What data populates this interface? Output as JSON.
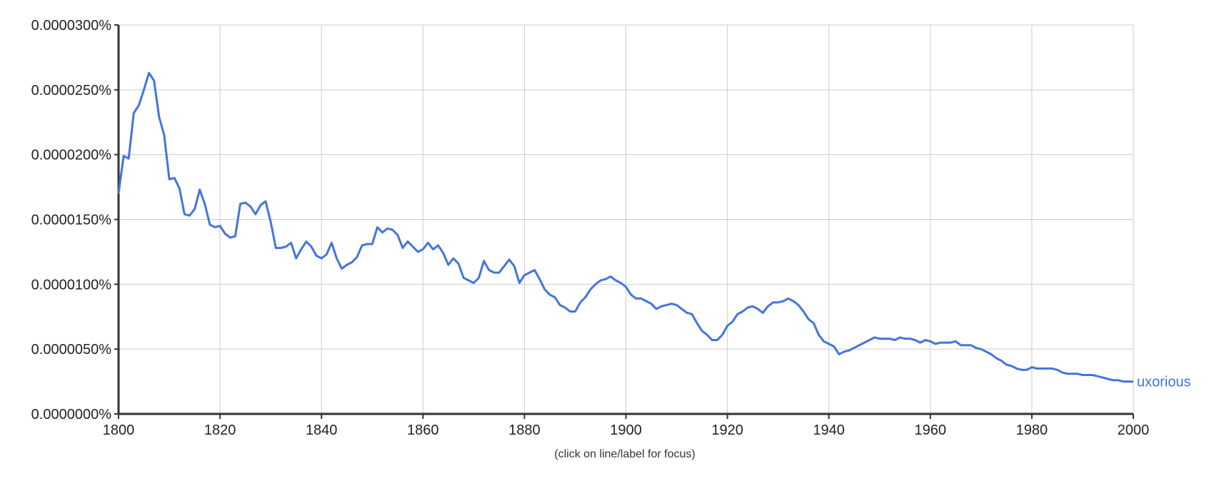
{
  "chart_data": {
    "type": "line",
    "title": "",
    "xlabel": "",
    "ylabel": "",
    "xlim": [
      1800,
      2000
    ],
    "ylim": [
      0,
      3e-05
    ],
    "grid": true,
    "x_ticks": [
      1800,
      1820,
      1840,
      1860,
      1880,
      1900,
      1920,
      1940,
      1960,
      1980,
      2000
    ],
    "x_tick_labels": [
      "1800",
      "1820",
      "1840",
      "1860",
      "1880",
      "1900",
      "1920",
      "1940",
      "1960",
      "1980",
      "2000"
    ],
    "y_ticks": [
      0,
      5e-06,
      1e-05,
      1.5e-05,
      2e-05,
      2.5e-05,
      3e-05
    ],
    "y_tick_labels": [
      "0.0000000%",
      "0.0000050%",
      "0.0000100%",
      "0.0000150%",
      "0.0000200%",
      "0.0000250%",
      "0.0000300%"
    ],
    "series": [
      {
        "name": "uxorious",
        "color": "#4374e0",
        "x": [
          1800,
          1801,
          1802,
          1803,
          1804,
          1805,
          1806,
          1807,
          1808,
          1809,
          1810,
          1811,
          1812,
          1813,
          1814,
          1815,
          1816,
          1817,
          1818,
          1819,
          1820,
          1821,
          1822,
          1823,
          1824,
          1825,
          1826,
          1827,
          1828,
          1829,
          1830,
          1831,
          1832,
          1833,
          1834,
          1835,
          1836,
          1837,
          1838,
          1839,
          1840,
          1841,
          1842,
          1843,
          1844,
          1845,
          1846,
          1847,
          1848,
          1849,
          1850,
          1851,
          1852,
          1853,
          1854,
          1855,
          1856,
          1857,
          1858,
          1859,
          1860,
          1861,
          1862,
          1863,
          1864,
          1865,
          1866,
          1867,
          1868,
          1869,
          1870,
          1871,
          1872,
          1873,
          1874,
          1875,
          1876,
          1877,
          1878,
          1879,
          1880,
          1881,
          1882,
          1883,
          1884,
          1885,
          1886,
          1887,
          1888,
          1889,
          1890,
          1891,
          1892,
          1893,
          1894,
          1895,
          1896,
          1897,
          1898,
          1899,
          1900,
          1901,
          1902,
          1903,
          1904,
          1905,
          1906,
          1907,
          1908,
          1909,
          1910,
          1911,
          1912,
          1913,
          1914,
          1915,
          1916,
          1917,
          1918,
          1919,
          1920,
          1921,
          1922,
          1923,
          1924,
          1925,
          1926,
          1927,
          1928,
          1929,
          1930,
          1931,
          1932,
          1933,
          1934,
          1935,
          1936,
          1937,
          1938,
          1939,
          1940,
          1941,
          1942,
          1943,
          1944,
          1945,
          1946,
          1947,
          1948,
          1949,
          1950,
          1951,
          1952,
          1953,
          1954,
          1955,
          1956,
          1957,
          1958,
          1959,
          1960,
          1961,
          1962,
          1963,
          1964,
          1965,
          1966,
          1967,
          1968,
          1969,
          1970,
          1971,
          1972,
          1973,
          1974,
          1975,
          1976,
          1977,
          1978,
          1979,
          1980,
          1981,
          1982,
          1983,
          1984,
          1985,
          1986,
          1987,
          1988,
          1989,
          1990,
          1991,
          1992,
          1993,
          1994,
          1995,
          1996,
          1997,
          1998,
          1999,
          2000
        ],
        "values": [
          1.7e-05,
          1.99e-05,
          1.97e-05,
          2.32e-05,
          2.38e-05,
          2.5e-05,
          2.63e-05,
          2.57e-05,
          2.29e-05,
          2.15e-05,
          1.81e-05,
          1.82e-05,
          1.74e-05,
          1.54e-05,
          1.53e-05,
          1.58e-05,
          1.73e-05,
          1.62e-05,
          1.46e-05,
          1.44e-05,
          1.45e-05,
          1.39e-05,
          1.36e-05,
          1.37e-05,
          1.62e-05,
          1.63e-05,
          1.6e-05,
          1.54e-05,
          1.61e-05,
          1.64e-05,
          1.48e-05,
          1.28e-05,
          1.28e-05,
          1.29e-05,
          1.32e-05,
          1.2e-05,
          1.27e-05,
          1.33e-05,
          1.29e-05,
          1.22e-05,
          1.2e-05,
          1.23e-05,
          1.32e-05,
          1.2e-05,
          1.12e-05,
          1.15e-05,
          1.17e-05,
          1.21e-05,
          1.3e-05,
          1.31e-05,
          1.31e-05,
          1.44e-05,
          1.4e-05,
          1.43e-05,
          1.42e-05,
          1.38e-05,
          1.28e-05,
          1.33e-05,
          1.29e-05,
          1.25e-05,
          1.27e-05,
          1.32e-05,
          1.27e-05,
          1.3e-05,
          1.24e-05,
          1.15e-05,
          1.2e-05,
          1.16e-05,
          1.05e-05,
          1.03e-05,
          1.01e-05,
          1.05e-05,
          1.18e-05,
          1.11e-05,
          1.09e-05,
          1.09e-05,
          1.14e-05,
          1.19e-05,
          1.14e-05,
          1.01e-05,
          1.07e-05,
          1.09e-05,
          1.11e-05,
          1.04e-05,
          9.6e-06,
          9.2e-06,
          9e-06,
          8.4e-06,
          8.2e-06,
          7.9e-06,
          7.9e-06,
          8.6e-06,
          9e-06,
          9.6e-06,
          1e-05,
          1.03e-05,
          1.04e-05,
          1.06e-05,
          1.03e-05,
          1.01e-05,
          9.8e-06,
          9.2e-06,
          8.9e-06,
          8.9e-06,
          8.7e-06,
          8.5e-06,
          8.1e-06,
          8.3e-06,
          8.4e-06,
          8.5e-06,
          8.4e-06,
          8.1e-06,
          7.8e-06,
          7.7e-06,
          7e-06,
          6.4e-06,
          6.1e-06,
          5.7e-06,
          5.7e-06,
          6.1e-06,
          6.8e-06,
          7.1e-06,
          7.7e-06,
          7.9e-06,
          8.2e-06,
          8.3e-06,
          8.1e-06,
          7.8e-06,
          8.3e-06,
          8.6e-06,
          8.6e-06,
          8.7e-06,
          8.9e-06,
          8.7e-06,
          8.4e-06,
          7.9e-06,
          7.3e-06,
          7e-06,
          6.1e-06,
          5.6e-06,
          5.4e-06,
          5.2e-06,
          4.6e-06,
          4.8e-06,
          4.9e-06,
          5.1e-06,
          5.3e-06,
          5.5e-06,
          5.7e-06,
          5.9e-06,
          5.8e-06,
          5.8e-06,
          5.8e-06,
          5.7e-06,
          5.9e-06,
          5.8e-06,
          5.8e-06,
          5.7e-06,
          5.5e-06,
          5.7e-06,
          5.6e-06,
          5.4e-06,
          5.5e-06,
          5.5e-06,
          5.5e-06,
          5.6e-06,
          5.3e-06,
          5.3e-06,
          5.3e-06,
          5.1e-06,
          5e-06,
          4.8e-06,
          4.6e-06,
          4.3e-06,
          4.1e-06,
          3.8e-06,
          3.7e-06,
          3.5e-06,
          3.4e-06,
          3.4e-06,
          3.6e-06,
          3.5e-06,
          3.5e-06,
          3.5e-06,
          3.5e-06,
          3.4e-06,
          3.2e-06,
          3.1e-06,
          3.1e-06,
          3.1e-06,
          3e-06,
          3e-06,
          3e-06,
          2.9e-06,
          2.8e-06,
          2.7e-06,
          2.6e-06,
          2.6e-06,
          2.5e-06,
          2.5e-06,
          2.5e-06
        ]
      }
    ],
    "series_label": "uxorious",
    "footnote": "(click on line/label for focus)",
    "colors": {
      "line": "#4374e0",
      "grid": "#cccccc",
      "axis": "#333333",
      "text": "#222222"
    }
  }
}
